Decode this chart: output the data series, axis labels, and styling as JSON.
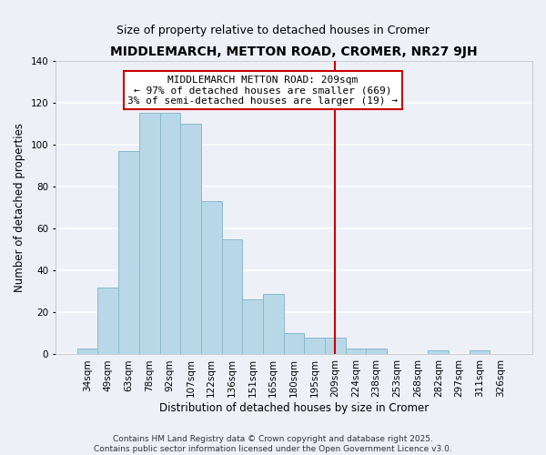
{
  "title": "MIDDLEMARCH, METTON ROAD, CROMER, NR27 9JH",
  "subtitle": "Size of property relative to detached houses in Cromer",
  "xlabel": "Distribution of detached houses by size in Cromer",
  "ylabel": "Number of detached properties",
  "categories": [
    "34sqm",
    "49sqm",
    "63sqm",
    "78sqm",
    "92sqm",
    "107sqm",
    "122sqm",
    "136sqm",
    "151sqm",
    "165sqm",
    "180sqm",
    "195sqm",
    "209sqm",
    "224sqm",
    "238sqm",
    "253sqm",
    "268sqm",
    "282sqm",
    "297sqm",
    "311sqm",
    "326sqm"
  ],
  "values": [
    3,
    32,
    97,
    115,
    115,
    110,
    73,
    55,
    26,
    29,
    10,
    8,
    8,
    3,
    3,
    0,
    0,
    2,
    0,
    2,
    0
  ],
  "bar_color": "#b8d8e8",
  "bar_edge_color": "#8ab8cc",
  "vline_x": 12,
  "vline_color": "#cc0000",
  "ylim": [
    0,
    140
  ],
  "yticks": [
    0,
    20,
    40,
    60,
    80,
    100,
    120,
    140
  ],
  "annotation_title": "MIDDLEMARCH METTON ROAD: 209sqm",
  "annotation_line1": "← 97% of detached houses are smaller (669)",
  "annotation_line2": "3% of semi-detached houses are larger (19) →",
  "annotation_box_color": "#ffffff",
  "annotation_border_color": "#cc0000",
  "footer1": "Contains HM Land Registry data © Crown copyright and database right 2025.",
  "footer2": "Contains public sector information licensed under the Open Government Licence v3.0.",
  "background_color": "#eef0f8",
  "grid_color": "#ffffff",
  "title_fontsize": 10,
  "subtitle_fontsize": 9,
  "axis_label_fontsize": 8.5,
  "tick_fontsize": 7.5,
  "annotation_fontsize": 8,
  "footer_fontsize": 6.5
}
